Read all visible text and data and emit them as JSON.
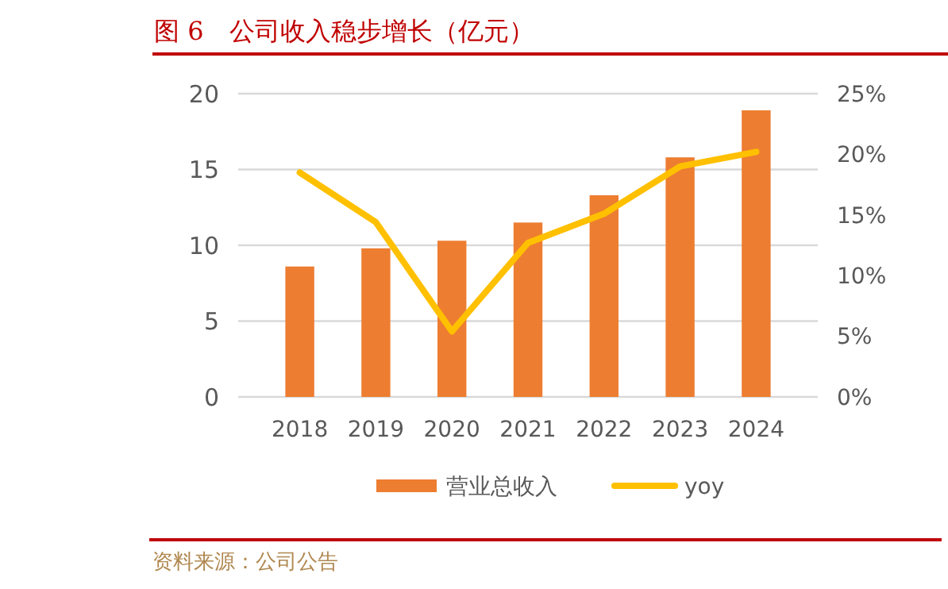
{
  "chart_data": {
    "type": "bar",
    "title": "图 6　公司收入稳步增长（亿元）",
    "categories": [
      "2018",
      "2019",
      "2020",
      "2021",
      "2022",
      "2023",
      "2024"
    ],
    "series": [
      {
        "name": "营业总收入",
        "color": "#ed7d31",
        "values": [
          8.6,
          9.8,
          10.3,
          11.5,
          13.3,
          15.8,
          18.9
        ]
      },
      {
        "name": "yoy",
        "type": "line",
        "axis": "y2",
        "color": "#ffc000",
        "values": [
          18.5,
          14.4,
          5.4,
          12.7,
          15.1,
          19.0,
          20.2
        ]
      }
    ],
    "ylim": [
      0,
      20
    ],
    "yticks": [
      0,
      5,
      10,
      15,
      20
    ],
    "y2lim": [
      0,
      25
    ],
    "y2ticks": [
      {
        "value": 0,
        "label": "0%"
      },
      {
        "value": 5,
        "label": "5%"
      },
      {
        "value": 10,
        "label": "10%"
      },
      {
        "value": 15,
        "label": "15%"
      },
      {
        "value": 20,
        "label": "20%"
      },
      {
        "value": 25,
        "label": "25%"
      }
    ],
    "grid": "y",
    "legend": "bottom",
    "marker": "none",
    "line_style": "solid",
    "annotations": [
      "资料来源：公司公告"
    ]
  }
}
